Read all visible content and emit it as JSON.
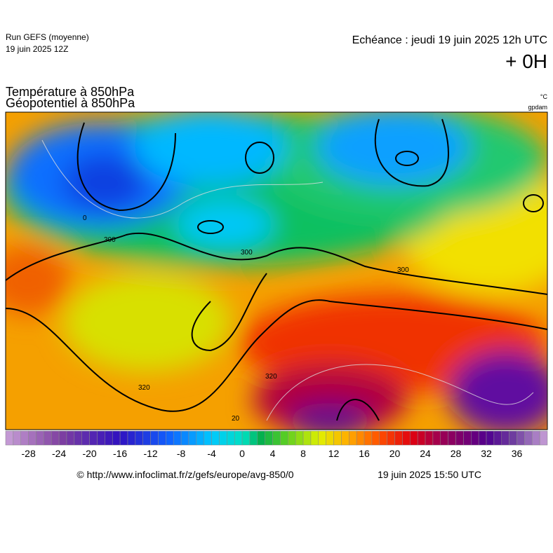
{
  "header": {
    "run": "Run GEFS (moyenne)",
    "run_date": "19 juin 2025 12Z",
    "echeance": "Echéance : jeudi 19 juin 2025 12h UTC",
    "lead": "+ 0H"
  },
  "titles": {
    "line1": "Température à 850hPa",
    "line2": "Géopotentiel à 850hPa",
    "unit1": "°C",
    "unit2": "gpdam"
  },
  "map_labels": [
    "300",
    "300",
    "300",
    "320",
    "320",
    "20",
    "0"
  ],
  "colorbar": {
    "lim": [
      -31,
      40
    ],
    "ticks": [
      -28,
      -24,
      -20,
      -16,
      -12,
      -8,
      -4,
      0,
      4,
      8,
      12,
      16,
      20,
      24,
      28,
      32,
      36
    ]
  },
  "footer": {
    "source": "© http://www.infoclimat.fr/z/gefs/europe/avg-850/0",
    "generated": "19 juin 2025 15:50 UTC"
  }
}
